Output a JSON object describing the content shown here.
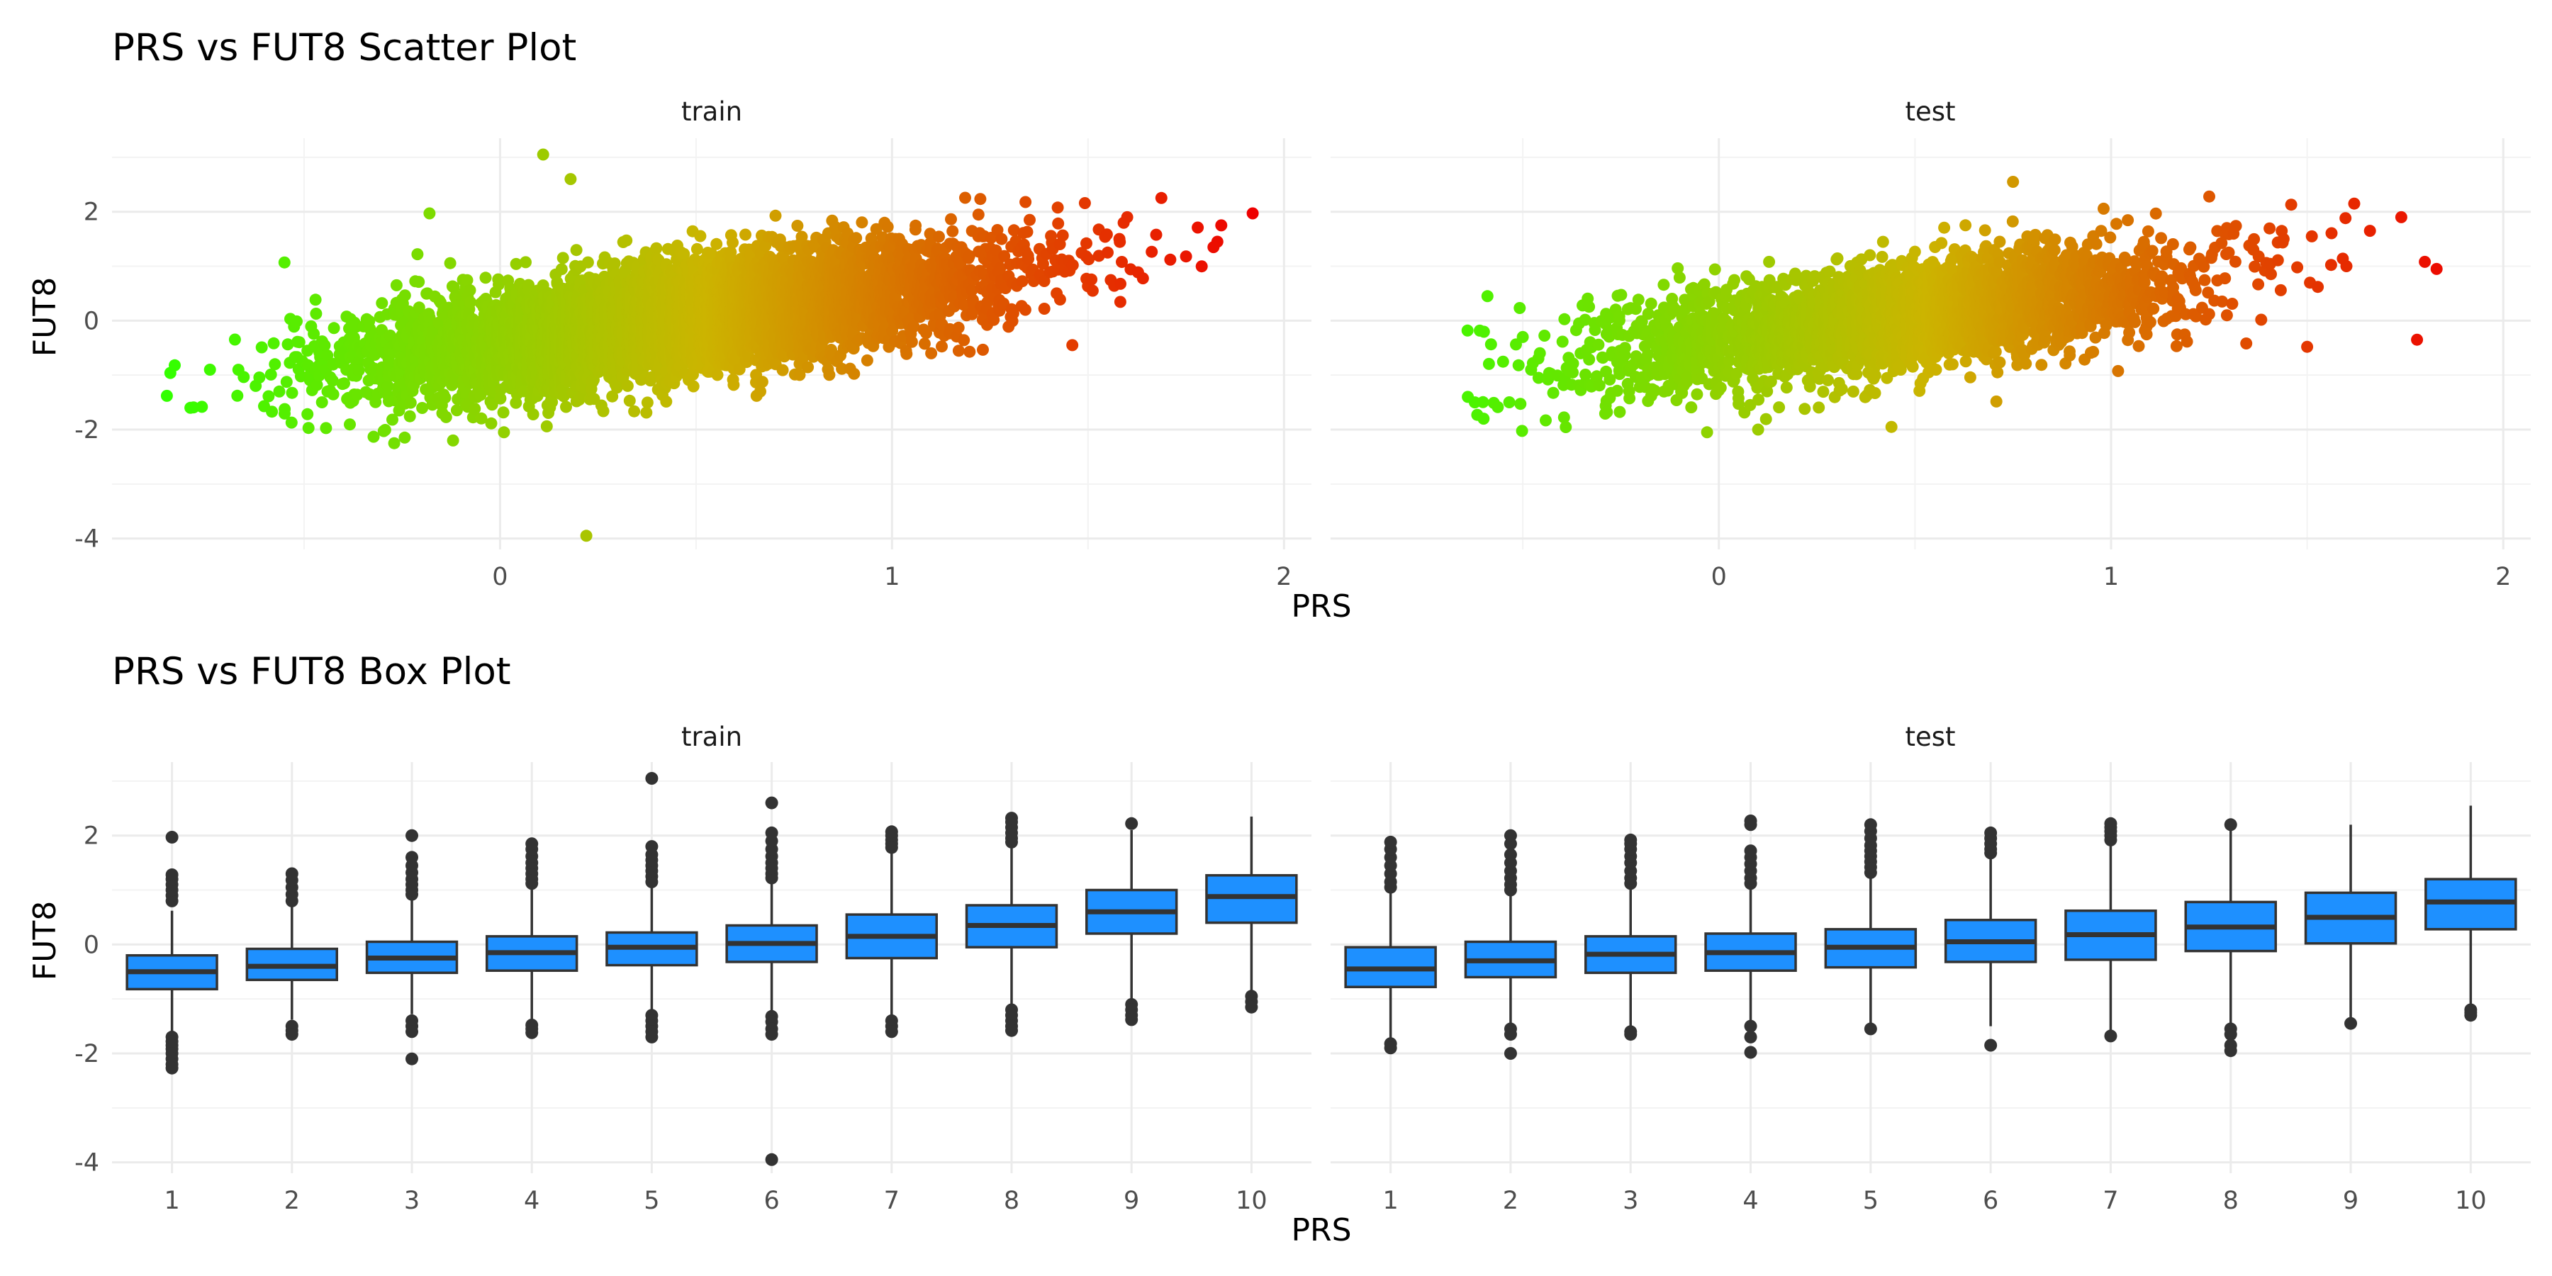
{
  "chart_data": [
    {
      "type": "scatter",
      "title": "PRS vs FUT8 Scatter Plot",
      "xlabel": "PRS",
      "ylabel": "FUT8",
      "xlim": [
        -0.99,
        2.07
      ],
      "ylim": [
        -4.2,
        3.35
      ],
      "x_ticks": [
        "0",
        "1",
        "2"
      ],
      "y_ticks": [
        "-4",
        "-2",
        "0",
        "2"
      ],
      "grid": true,
      "legend": "none",
      "color_scale": {
        "low": "#33ff00",
        "mid": "#ccb400",
        "high": "#ee0000",
        "domain": [
          -0.85,
          1.92
        ]
      },
      "trend": {
        "slope": 0.95,
        "intercept": -0.4,
        "residual_sd": 0.5
      },
      "facets": [
        {
          "label": "train",
          "x_range": [
            -0.85,
            1.92
          ],
          "n_points": 6500,
          "outliers": [
            {
              "x": 0.11,
              "y": 3.05
            },
            {
              "x": 0.18,
              "y": 2.6
            },
            {
              "x": -0.18,
              "y": 1.97
            },
            {
              "x": -0.55,
              "y": 1.07
            },
            {
              "x": 0.22,
              "y": -3.95
            },
            {
              "x": -0.12,
              "y": -2.2
            },
            {
              "x": -0.27,
              "y": -2.25
            },
            {
              "x": -0.85,
              "y": -1.38
            },
            {
              "x": -0.79,
              "y": -1.6
            },
            {
              "x": -0.83,
              "y": -0.82
            },
            {
              "x": -0.74,
              "y": -0.9
            },
            {
              "x": 1.92,
              "y": 1.97
            },
            {
              "x": 1.84,
              "y": 1.75
            },
            {
              "x": 1.78,
              "y": 1.71
            },
            {
              "x": 1.83,
              "y": 1.45
            },
            {
              "x": 1.82,
              "y": 1.35
            },
            {
              "x": 1.75,
              "y": 1.18
            },
            {
              "x": 1.71,
              "y": 1.12
            },
            {
              "x": 1.55,
              "y": 1.25
            },
            {
              "x": 1.58,
              "y": 1.5
            },
            {
              "x": 1.6,
              "y": 1.9
            },
            {
              "x": 1.46,
              "y": -0.45
            },
            {
              "x": 1.1,
              "y": -0.6
            },
            {
              "x": 1.34,
              "y": 0.2
            },
            {
              "x": 1.42,
              "y": 0.5
            },
            {
              "x": 0.01,
              "y": -2.05
            }
          ]
        },
        {
          "label": "test",
          "x_range": [
            -0.65,
            1.83
          ],
          "n_points": 3000,
          "outliers": [
            {
              "x": 0.75,
              "y": 2.55
            },
            {
              "x": -0.64,
              "y": -1.4
            },
            {
              "x": -0.6,
              "y": -1.8
            },
            {
              "x": -0.59,
              "y": 0.45
            },
            {
              "x": -0.5,
              "y": -0.3
            },
            {
              "x": 1.74,
              "y": 1.9
            },
            {
              "x": 1.8,
              "y": 1.08
            },
            {
              "x": 1.83,
              "y": 0.95
            },
            {
              "x": 1.78,
              "y": -0.35
            },
            {
              "x": 1.62,
              "y": 2.15
            },
            {
              "x": 1.66,
              "y": 1.65
            },
            {
              "x": 1.6,
              "y": 1.0
            },
            {
              "x": 1.5,
              "y": -0.48
            },
            {
              "x": 1.44,
              "y": 1.5
            },
            {
              "x": 1.3,
              "y": 1.25
            },
            {
              "x": 1.25,
              "y": 0.12
            },
            {
              "x": 0.44,
              "y": -1.95
            },
            {
              "x": 0.1,
              "y": -2.0
            },
            {
              "x": -0.03,
              "y": -2.05
            }
          ]
        }
      ]
    },
    {
      "type": "box",
      "title": "PRS vs FUT8 Box Plot",
      "xlabel": "PRS",
      "ylabel": "FUT8",
      "ylim": [
        -4.2,
        3.35
      ],
      "y_ticks": [
        "-4",
        "-2",
        "0",
        "2"
      ],
      "categories": [
        "1",
        "2",
        "3",
        "4",
        "5",
        "6",
        "7",
        "8",
        "9",
        "10"
      ],
      "grid": true,
      "legend": "none",
      "fill_color": "#1e90ff",
      "edge_color": "#333333",
      "facets": [
        {
          "label": "train",
          "boxes": [
            {
              "q1": -0.82,
              "median": -0.5,
              "q3": -0.2,
              "wlow": -1.62,
              "whigh": 0.62,
              "outliers": [
                0.8,
                0.9,
                1.0,
                1.1,
                1.2,
                1.28,
                1.97,
                -1.7,
                -1.78,
                -1.85,
                -1.92,
                -2.0,
                -2.1,
                -2.2,
                -2.27
              ]
            },
            {
              "q1": -0.65,
              "median": -0.4,
              "q3": -0.08,
              "wlow": -1.38,
              "whigh": 0.72,
              "outliers": [
                0.8,
                0.92,
                1.05,
                1.18,
                1.3,
                -1.5,
                -1.58,
                -1.65
              ]
            },
            {
              "q1": -0.52,
              "median": -0.25,
              "q3": 0.05,
              "wlow": -1.28,
              "whigh": 0.85,
              "outliers": [
                0.92,
                1.0,
                1.1,
                1.2,
                1.32,
                1.45,
                1.6,
                2.0,
                -1.4,
                -1.5,
                -1.6,
                -2.1
              ]
            },
            {
              "q1": -0.48,
              "median": -0.15,
              "q3": 0.15,
              "wlow": -1.38,
              "whigh": 1.05,
              "outliers": [
                1.12,
                1.2,
                1.3,
                1.4,
                1.5,
                1.62,
                1.75,
                1.85,
                -1.48,
                -1.55,
                -1.62
              ]
            },
            {
              "q1": -0.38,
              "median": -0.05,
              "q3": 0.22,
              "wlow": -1.22,
              "whigh": 1.08,
              "outliers": [
                1.15,
                1.25,
                1.35,
                1.45,
                1.55,
                1.65,
                1.8,
                3.05,
                -1.3,
                -1.4,
                -1.5,
                -1.6,
                -1.7
              ]
            },
            {
              "q1": -0.32,
              "median": 0.02,
              "q3": 0.35,
              "wlow": -1.25,
              "whigh": 1.15,
              "outliers": [
                1.22,
                1.3,
                1.4,
                1.5,
                1.62,
                1.75,
                1.9,
                2.05,
                2.6,
                -1.32,
                -1.42,
                -1.55,
                -1.65,
                -3.95
              ]
            },
            {
              "q1": -0.25,
              "median": 0.15,
              "q3": 0.55,
              "wlow": -1.3,
              "whigh": 1.7,
              "outliers": [
                1.78,
                1.85,
                1.92,
                2.0,
                2.07,
                -1.4,
                -1.5,
                -1.6
              ]
            },
            {
              "q1": -0.05,
              "median": 0.35,
              "q3": 0.72,
              "wlow": -1.1,
              "whigh": 1.8,
              "outliers": [
                1.88,
                1.95,
                2.05,
                2.15,
                2.25,
                2.32,
                -1.2,
                -1.3,
                -1.4,
                -1.5,
                -1.58
              ]
            },
            {
              "q1": 0.2,
              "median": 0.6,
              "q3": 1.0,
              "wlow": -1.0,
              "whigh": 2.1,
              "outliers": [
                2.22,
                -1.1,
                -1.2,
                -1.3,
                -1.38
              ]
            },
            {
              "q1": 0.4,
              "median": 0.88,
              "q3": 1.27,
              "wlow": -0.85,
              "whigh": 2.35,
              "outliers": [
                -0.95,
                -1.05,
                -1.15
              ]
            }
          ]
        },
        {
          "label": "test",
          "boxes": [
            {
              "q1": -0.78,
              "median": -0.45,
              "q3": -0.05,
              "wlow": -1.75,
              "whigh": 0.95,
              "outliers": [
                1.05,
                1.15,
                1.3,
                1.45,
                1.6,
                1.75,
                1.88,
                -1.82,
                -1.9
              ]
            },
            {
              "q1": -0.6,
              "median": -0.3,
              "q3": 0.05,
              "wlow": -1.45,
              "whigh": 0.9,
              "outliers": [
                1.0,
                1.1,
                1.22,
                1.35,
                1.5,
                1.65,
                1.85,
                2.0,
                -1.55,
                -1.65,
                -2.0
              ]
            },
            {
              "q1": -0.52,
              "median": -0.18,
              "q3": 0.15,
              "wlow": -1.58,
              "whigh": 1.05,
              "outliers": [
                1.12,
                1.22,
                1.35,
                1.5,
                1.62,
                1.75,
                1.85,
                1.92,
                -1.6,
                -1.65
              ]
            },
            {
              "q1": -0.48,
              "median": -0.15,
              "q3": 0.2,
              "wlow": -1.4,
              "whigh": 1.05,
              "outliers": [
                1.12,
                1.22,
                1.35,
                1.48,
                1.6,
                1.72,
                2.2,
                2.27,
                -1.5,
                -1.7,
                -1.98
              ]
            },
            {
              "q1": -0.42,
              "median": -0.05,
              "q3": 0.28,
              "wlow": -1.45,
              "whigh": 1.25,
              "outliers": [
                1.32,
                1.42,
                1.52,
                1.62,
                1.72,
                1.82,
                1.95,
                2.08,
                2.2,
                -1.55
              ]
            },
            {
              "q1": -0.32,
              "median": 0.05,
              "q3": 0.45,
              "wlow": -1.5,
              "whigh": 1.6,
              "outliers": [
                1.68,
                1.75,
                1.85,
                1.95,
                2.05,
                -1.85
              ]
            },
            {
              "q1": -0.28,
              "median": 0.18,
              "q3": 0.62,
              "wlow": -1.6,
              "whigh": 1.85,
              "outliers": [
                1.92,
                2.0,
                2.08,
                2.15,
                2.22,
                -1.68
              ]
            },
            {
              "q1": -0.12,
              "median": 0.32,
              "q3": 0.78,
              "wlow": -1.45,
              "whigh": 2.1,
              "outliers": [
                2.2,
                -1.55,
                -1.65,
                -1.85,
                -1.95
              ]
            },
            {
              "q1": 0.02,
              "median": 0.5,
              "q3": 0.95,
              "wlow": -1.38,
              "whigh": 2.2,
              "outliers": [
                -1.45
              ]
            },
            {
              "q1": 0.28,
              "median": 0.78,
              "q3": 1.2,
              "wlow": -1.1,
              "whigh": 2.55,
              "outliers": [
                -1.2,
                -1.25,
                -1.3
              ]
            }
          ]
        }
      ]
    }
  ]
}
